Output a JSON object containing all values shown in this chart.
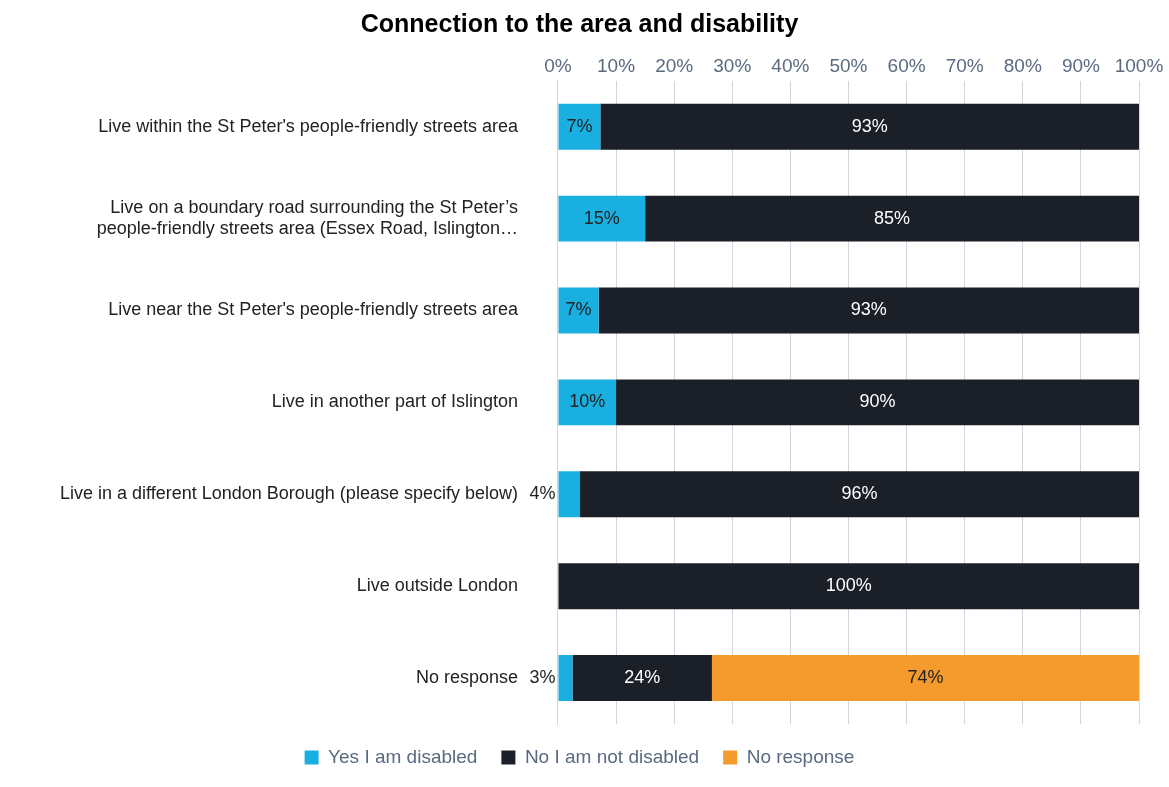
{
  "chart_data": {
    "type": "bar",
    "orientation": "horizontal",
    "stacked": true,
    "title": "Connection to the area and disability",
    "categories": [
      "Live within the St Peter's people-friendly streets area",
      "Live on a boundary road surrounding the St Peter’s people-friendly streets area (Essex Road, Islington…",
      "Live near the St Peter's people-friendly streets area",
      "Live in another part of Islington",
      "Live in a different London Borough (please specify below)",
      "Live outside London",
      "No response"
    ],
    "series": [
      {
        "name": "Yes I am disabled",
        "color": "#1aafe1",
        "values": [
          7.3,
          15,
          7,
          10,
          3.8,
          0,
          2.5
        ],
        "value_labels": [
          "7%",
          "15%",
          "7%",
          "10%",
          "4%",
          null,
          "3%"
        ]
      },
      {
        "name": "No I am not disabled",
        "color": "#1b1f27",
        "values": [
          92.7,
          85,
          93,
          90,
          96.2,
          100,
          24
        ],
        "value_labels": [
          "93%",
          "85%",
          "93%",
          "90%",
          "96%",
          "100%",
          "24%"
        ]
      },
      {
        "name": "No response",
        "color": "#f59a2d",
        "values": [
          0,
          0,
          0,
          0,
          0,
          0,
          73.5
        ],
        "value_labels": [
          null,
          null,
          null,
          null,
          null,
          null,
          "74%"
        ]
      }
    ],
    "xlim": [
      0,
      100
    ],
    "xticks": [
      {
        "value": 0,
        "label": "0%"
      },
      {
        "value": 10,
        "label": "10%"
      },
      {
        "value": 20,
        "label": "20%"
      },
      {
        "value": 30,
        "label": "30%"
      },
      {
        "value": 40,
        "label": "40%"
      },
      {
        "value": 50,
        "label": "50%"
      },
      {
        "value": 60,
        "label": "60%"
      },
      {
        "value": 70,
        "label": "70%"
      },
      {
        "value": 80,
        "label": "80%"
      },
      {
        "value": 90,
        "label": "90%"
      },
      {
        "value": 100,
        "label": "100%"
      }
    ],
    "grid": "x",
    "legend": "bottom"
  }
}
